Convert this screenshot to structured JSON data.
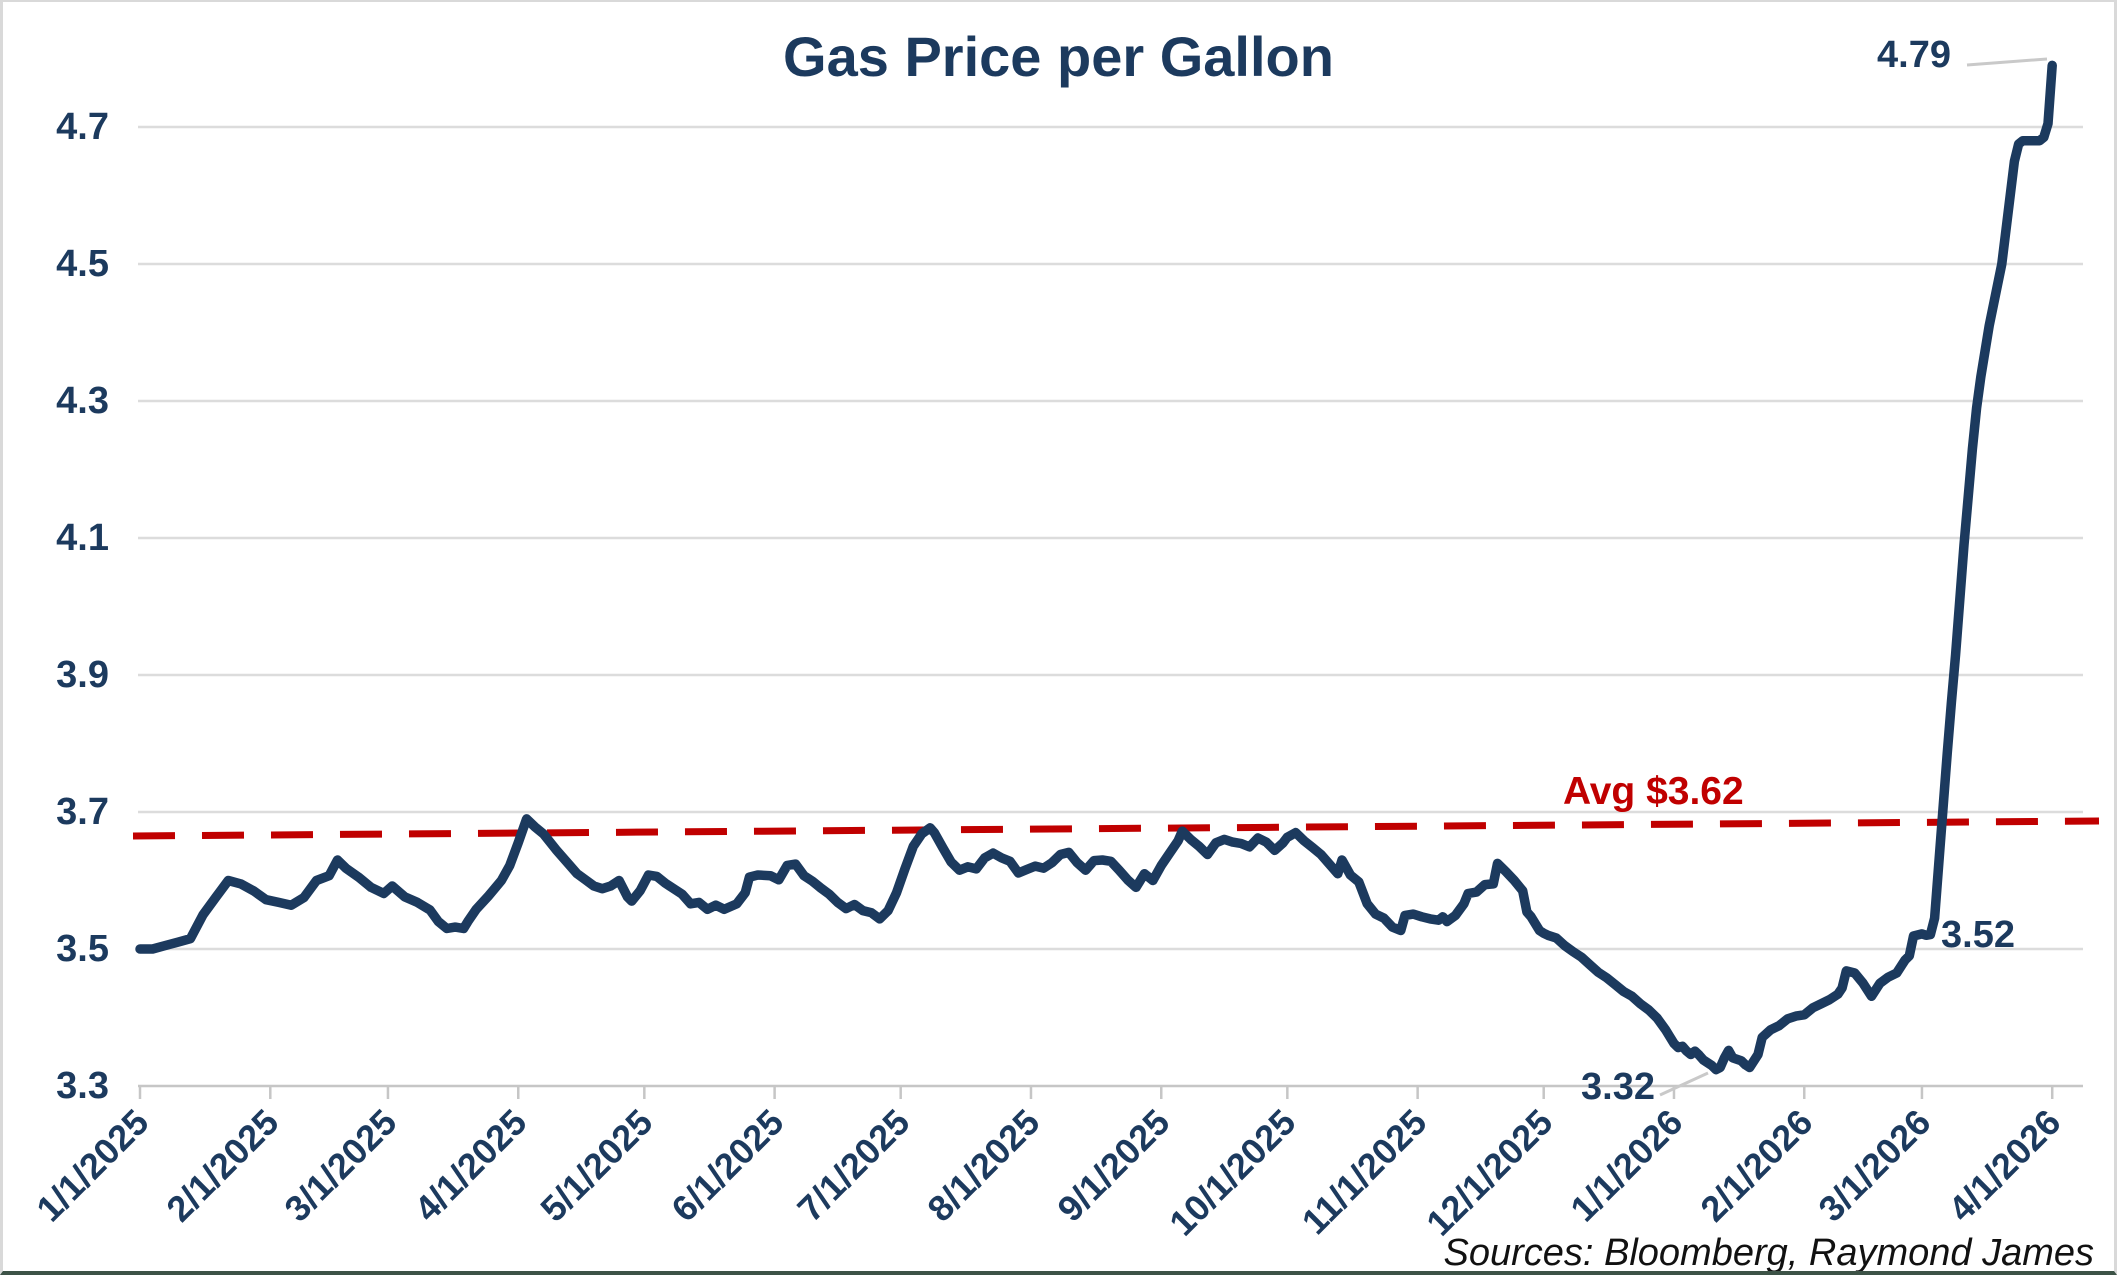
{
  "chart_data": {
    "type": "line",
    "title": "Gas Price per Gallon",
    "source_note": "Sources: Bloomberg, Raymond James",
    "legend_position": "none",
    "grid": "horizontal-only",
    "colors": {
      "line": "#1c3a5e",
      "average_line": "#c00000",
      "axis_text": "#1c3a5e",
      "gridline": "#dcdcdc",
      "axis_line": "#c6c6c6",
      "leader_line": "#c9c9c9"
    },
    "y_axis": {
      "min": 3.3,
      "max": 4.8,
      "tick_step": 0.2,
      "tick_labels": [
        "3.3",
        "3.5",
        "3.7",
        "3.9",
        "4.1",
        "4.3",
        "4.5",
        "4.7"
      ]
    },
    "x_axis": {
      "tick_labels": [
        "1/1/2025",
        "2/1/2025",
        "3/1/2025",
        "4/1/2025",
        "5/1/2025",
        "6/1/2025",
        "7/1/2025",
        "8/1/2025",
        "9/1/2025",
        "10/1/2025",
        "11/1/2025",
        "12/1/2025",
        "1/1/2026",
        "2/1/2026",
        "3/1/2026",
        "4/1/2026"
      ]
    },
    "average_line": {
      "label": "Avg $3.62",
      "value": 3.62,
      "style": "dashed",
      "color": "#c00000"
    },
    "annotations": [
      {
        "label": "4.79",
        "date": "4/1/2026",
        "value": 4.79
      },
      {
        "label": "3.52",
        "date": "3/1/2026",
        "value": 3.52
      },
      {
        "label": "3.32",
        "date": "1/11/2026",
        "value": 3.32
      }
    ],
    "series": [
      {
        "name": "Gas Price per Gallon",
        "color": "#1c3a5e",
        "points": [
          [
            "1/1/2025",
            3.5
          ],
          [
            "1/4/2025",
            3.5
          ],
          [
            "1/7/2025",
            3.505
          ],
          [
            "1/10/2025",
            3.51
          ],
          [
            "1/13/2025",
            3.515
          ],
          [
            "1/16/2025",
            3.55
          ],
          [
            "1/19/2025",
            3.575
          ],
          [
            "1/22/2025",
            3.6
          ],
          [
            "1/25/2025",
            3.595
          ],
          [
            "1/28/2025",
            3.585
          ],
          [
            "1/31/2025",
            3.572
          ],
          [
            "2/3/2025",
            3.568
          ],
          [
            "2/6/2025",
            3.564
          ],
          [
            "2/9/2025",
            3.575
          ],
          [
            "2/12/2025",
            3.6
          ],
          [
            "2/15/2025",
            3.607
          ],
          [
            "2/17/2025",
            3.63
          ],
          [
            "2/19/2025",
            3.618
          ],
          [
            "2/22/2025",
            3.605
          ],
          [
            "2/25/2025",
            3.59
          ],
          [
            "2/28/2025",
            3.581
          ],
          [
            "3/2/2025",
            3.592
          ],
          [
            "3/5/2025",
            3.576
          ],
          [
            "3/8/2025",
            3.568
          ],
          [
            "3/11/2025",
            3.557
          ],
          [
            "3/13/2025",
            3.54
          ],
          [
            "3/15/2025",
            3.53
          ],
          [
            "3/17/2025",
            3.532
          ],
          [
            "3/19/2025",
            3.53
          ],
          [
            "3/20/2025",
            3.54
          ],
          [
            "3/22/2025",
            3.558
          ],
          [
            "3/25/2025",
            3.578
          ],
          [
            "3/28/2025",
            3.6
          ],
          [
            "3/30/2025",
            3.622
          ],
          [
            "4/1/2025",
            3.655
          ],
          [
            "4/3/2025",
            3.69
          ],
          [
            "4/5/2025",
            3.678
          ],
          [
            "4/7/2025",
            3.668
          ],
          [
            "4/10/2025",
            3.645
          ],
          [
            "4/13/2025",
            3.624
          ],
          [
            "4/15/2025",
            3.61
          ],
          [
            "4/17/2025",
            3.601
          ],
          [
            "4/19/2025",
            3.592
          ],
          [
            "4/21/2025",
            3.588
          ],
          [
            "4/23/2025",
            3.592
          ],
          [
            "4/25/2025",
            3.6
          ],
          [
            "4/27/2025",
            3.576
          ],
          [
            "4/28/2025",
            3.57
          ],
          [
            "4/30/2025",
            3.585
          ],
          [
            "5/2/2025",
            3.608
          ],
          [
            "5/4/2025",
            3.606
          ],
          [
            "5/6/2025",
            3.596
          ],
          [
            "5/8/2025",
            3.588
          ],
          [
            "5/10/2025",
            3.58
          ],
          [
            "5/12/2025",
            3.566
          ],
          [
            "5/14/2025",
            3.568
          ],
          [
            "5/16/2025",
            3.558
          ],
          [
            "5/18/2025",
            3.564
          ],
          [
            "5/20/2025",
            3.558
          ],
          [
            "5/23/2025",
            3.566
          ],
          [
            "5/25/2025",
            3.582
          ],
          [
            "5/26/2025",
            3.605
          ],
          [
            "5/28/2025",
            3.608
          ],
          [
            "5/31/2025",
            3.607
          ],
          [
            "6/2/2025",
            3.601
          ],
          [
            "6/4/2025",
            3.622
          ],
          [
            "6/6/2025",
            3.624
          ],
          [
            "6/8/2025",
            3.607
          ],
          [
            "6/10/2025",
            3.599
          ],
          [
            "6/12/2025",
            3.589
          ],
          [
            "6/14/2025",
            3.58
          ],
          [
            "6/16/2025",
            3.568
          ],
          [
            "6/18/2025",
            3.559
          ],
          [
            "6/20/2025",
            3.565
          ],
          [
            "6/22/2025",
            3.556
          ],
          [
            "6/24/2025",
            3.553
          ],
          [
            "6/26/2025",
            3.544
          ],
          [
            "6/28/2025",
            3.556
          ],
          [
            "6/30/2025",
            3.582
          ],
          [
            "7/2/2025",
            3.617
          ],
          [
            "7/4/2025",
            3.65
          ],
          [
            "7/6/2025",
            3.668
          ],
          [
            "7/8/2025",
            3.677
          ],
          [
            "7/9/2025",
            3.67
          ],
          [
            "7/11/2025",
            3.648
          ],
          [
            "7/13/2025",
            3.627
          ],
          [
            "7/15/2025",
            3.615
          ],
          [
            "7/17/2025",
            3.62
          ],
          [
            "7/19/2025",
            3.617
          ],
          [
            "7/21/2025",
            3.633
          ],
          [
            "7/23/2025",
            3.64
          ],
          [
            "7/25/2025",
            3.633
          ],
          [
            "7/27/2025",
            3.628
          ],
          [
            "7/29/2025",
            3.611
          ],
          [
            "7/31/2025",
            3.616
          ],
          [
            "8/2/2025",
            3.621
          ],
          [
            "8/4/2025",
            3.618
          ],
          [
            "8/6/2025",
            3.626
          ],
          [
            "8/8/2025",
            3.638
          ],
          [
            "8/10/2025",
            3.641
          ],
          [
            "8/12/2025",
            3.626
          ],
          [
            "8/14/2025",
            3.615
          ],
          [
            "8/16/2025",
            3.629
          ],
          [
            "8/18/2025",
            3.63
          ],
          [
            "8/20/2025",
            3.628
          ],
          [
            "8/22/2025",
            3.615
          ],
          [
            "8/24/2025",
            3.601
          ],
          [
            "8/26/2025",
            3.59
          ],
          [
            "8/28/2025",
            3.61
          ],
          [
            "8/30/2025",
            3.6
          ],
          [
            "9/1/2025",
            3.622
          ],
          [
            "9/3/2025",
            3.64
          ],
          [
            "9/5/2025",
            3.658
          ],
          [
            "9/6/2025",
            3.672
          ],
          [
            "9/8/2025",
            3.66
          ],
          [
            "9/10/2025",
            3.65
          ],
          [
            "9/12/2025",
            3.638
          ],
          [
            "9/14/2025",
            3.655
          ],
          [
            "9/16/2025",
            3.66
          ],
          [
            "9/18/2025",
            3.656
          ],
          [
            "9/20/2025",
            3.654
          ],
          [
            "9/22/2025",
            3.649
          ],
          [
            "9/24/2025",
            3.662
          ],
          [
            "9/26/2025",
            3.656
          ],
          [
            "9/28/2025",
            3.644
          ],
          [
            "9/30/2025",
            3.655
          ],
          [
            "10/1/2025",
            3.663
          ],
          [
            "10/3/2025",
            3.67
          ],
          [
            "10/5/2025",
            3.658
          ],
          [
            "10/7/2025",
            3.648
          ],
          [
            "10/9/2025",
            3.638
          ],
          [
            "10/11/2025",
            3.624
          ],
          [
            "10/13/2025",
            3.61
          ],
          [
            "10/14/2025",
            3.63
          ],
          [
            "10/16/2025",
            3.608
          ],
          [
            "10/18/2025",
            3.598
          ],
          [
            "10/20/2025",
            3.566
          ],
          [
            "10/22/2025",
            3.551
          ],
          [
            "10/24/2025",
            3.545
          ],
          [
            "10/26/2025",
            3.532
          ],
          [
            "10/28/2025",
            3.527
          ],
          [
            "10/29/2025",
            3.549
          ],
          [
            "10/31/2025",
            3.551
          ],
          [
            "11/2/2025",
            3.547
          ],
          [
            "11/4/2025",
            3.544
          ],
          [
            "11/6/2025",
            3.542
          ],
          [
            "11/7/2025",
            3.547
          ],
          [
            "11/8/2025",
            3.54
          ],
          [
            "11/10/2025",
            3.549
          ],
          [
            "11/12/2025",
            3.566
          ],
          [
            "11/13/2025",
            3.581
          ],
          [
            "11/15/2025",
            3.583
          ],
          [
            "11/17/2025",
            3.594
          ],
          [
            "11/19/2025",
            3.595
          ],
          [
            "11/20/2025",
            3.625
          ],
          [
            "11/22/2025",
            3.613
          ],
          [
            "11/24/2025",
            3.6
          ],
          [
            "11/26/2025",
            3.585
          ],
          [
            "11/27/2025",
            3.554
          ],
          [
            "11/28/2025",
            3.547
          ],
          [
            "11/30/2025",
            3.527
          ],
          [
            "12/1/2025",
            3.523
          ],
          [
            "12/2/2025",
            3.52
          ],
          [
            "12/4/2025",
            3.516
          ],
          [
            "12/6/2025",
            3.505
          ],
          [
            "12/8/2025",
            3.496
          ],
          [
            "12/10/2025",
            3.488
          ],
          [
            "12/12/2025",
            3.477
          ],
          [
            "12/14/2025",
            3.466
          ],
          [
            "12/16/2025",
            3.458
          ],
          [
            "12/18/2025",
            3.448
          ],
          [
            "12/20/2025",
            3.438
          ],
          [
            "12/22/2025",
            3.431
          ],
          [
            "12/24/2025",
            3.42
          ],
          [
            "12/26/2025",
            3.411
          ],
          [
            "12/28/2025",
            3.399
          ],
          [
            "12/30/2025",
            3.382
          ],
          [
            "12/31/2025",
            3.372
          ],
          [
            "1/1/2026",
            3.362
          ],
          [
            "1/2/2026",
            3.356
          ],
          [
            "1/3/2026",
            3.358
          ],
          [
            "1/4/2026",
            3.351
          ],
          [
            "1/5/2026",
            3.346
          ],
          [
            "1/6/2026",
            3.351
          ],
          [
            "1/7/2026",
            3.345
          ],
          [
            "1/8/2026",
            3.338
          ],
          [
            "1/10/2026",
            3.33
          ],
          [
            "1/11/2026",
            3.324
          ],
          [
            "1/12/2026",
            3.327
          ],
          [
            "1/13/2026",
            3.341
          ],
          [
            "1/14/2026",
            3.352
          ],
          [
            "1/15/2026",
            3.341
          ],
          [
            "1/17/2026",
            3.337
          ],
          [
            "1/18/2026",
            3.331
          ],
          [
            "1/19/2026",
            3.327
          ],
          [
            "1/21/2026",
            3.346
          ],
          [
            "1/22/2026",
            3.371
          ],
          [
            "1/24/2026",
            3.382
          ],
          [
            "1/26/2026",
            3.388
          ],
          [
            "1/28/2026",
            3.398
          ],
          [
            "1/30/2026",
            3.402
          ],
          [
            "2/1/2026",
            3.404
          ],
          [
            "2/3/2026",
            3.414
          ],
          [
            "2/5/2026",
            3.42
          ],
          [
            "2/7/2026",
            3.426
          ],
          [
            "2/9/2026",
            3.434
          ],
          [
            "2/10/2026",
            3.443
          ],
          [
            "2/11/2026",
            3.468
          ],
          [
            "2/13/2026",
            3.465
          ],
          [
            "2/15/2026",
            3.45
          ],
          [
            "2/17/2026",
            3.431
          ],
          [
            "2/19/2026",
            3.45
          ],
          [
            "2/21/2026",
            3.459
          ],
          [
            "2/23/2026",
            3.465
          ],
          [
            "2/25/2026",
            3.484
          ],
          [
            "2/26/2026",
            3.49
          ],
          [
            "2/27/2026",
            3.519
          ],
          [
            "3/1/2026",
            3.522
          ],
          [
            "3/2/2026",
            3.52
          ],
          [
            "3/3/2026",
            3.521
          ],
          [
            "3/4/2026",
            3.545
          ],
          [
            "3/5/2026",
            3.625
          ],
          [
            "3/6/2026",
            3.705
          ],
          [
            "3/7/2026",
            3.785
          ],
          [
            "3/8/2026",
            3.86
          ],
          [
            "3/9/2026",
            3.93
          ],
          [
            "3/10/2026",
            4.01
          ],
          [
            "3/11/2026",
            4.09
          ],
          [
            "3/12/2026",
            4.16
          ],
          [
            "3/13/2026",
            4.23
          ],
          [
            "3/14/2026",
            4.29
          ],
          [
            "3/15/2026",
            4.335
          ],
          [
            "3/17/2026",
            4.41
          ],
          [
            "3/19/2026",
            4.47
          ],
          [
            "3/20/2026",
            4.5
          ],
          [
            "3/21/2026",
            4.55
          ],
          [
            "3/22/2026",
            4.6
          ],
          [
            "3/23/2026",
            4.65
          ],
          [
            "3/24/2026",
            4.675
          ],
          [
            "3/25/2026",
            4.68
          ],
          [
            "3/27/2026",
            4.68
          ],
          [
            "3/29/2026",
            4.68
          ],
          [
            "3/30/2026",
            4.685
          ],
          [
            "3/31/2026",
            4.705
          ],
          [
            "4/1/2026",
            4.79
          ]
        ]
      }
    ]
  }
}
